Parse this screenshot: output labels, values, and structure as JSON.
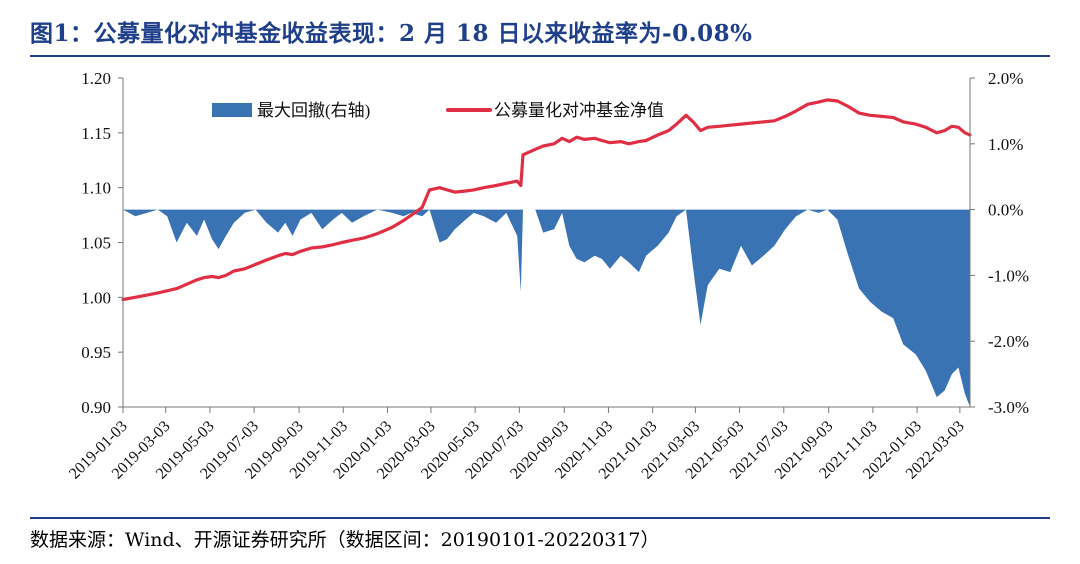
{
  "figure": {
    "title": "图1：公募量化对冲基金收益表现：2 月 18 日以来收益率为-0.08%",
    "source": "数据来源：Wind、开源证券研究所（数据区间：20190101-20220317）"
  },
  "chart_data": {
    "type": "area",
    "title": "",
    "xlabel": "",
    "ylabel_left": "",
    "ylabel_right": "",
    "xlim": [
      "2019-01-03",
      "2022-03-17"
    ],
    "ylim_left": [
      0.9,
      1.2
    ],
    "ylim_right": [
      -3.0,
      2.0
    ],
    "yticks_left": [
      "0.90",
      "0.95",
      "1.00",
      "1.05",
      "1.10",
      "1.15",
      "1.20"
    ],
    "yticks_right": [
      "-3.0%",
      "-2.0%",
      "-1.0%",
      "0.0%",
      "1.0%",
      "2.0%"
    ],
    "xticks": [
      "2019-01-03",
      "2019-03-03",
      "2019-05-03",
      "2019-07-03",
      "2019-09-03",
      "2019-11-03",
      "2020-01-03",
      "2020-03-03",
      "2020-05-03",
      "2020-07-03",
      "2020-09-03",
      "2020-11-03",
      "2021-01-03",
      "2021-03-03",
      "2021-05-03",
      "2021-07-03",
      "2021-09-03",
      "2021-11-03",
      "2022-01-03",
      "2022-03-03"
    ],
    "legend_position": "top-left inside",
    "grid": false,
    "series": [
      {
        "name": "最大回撤(右轴)",
        "kind": "area",
        "axis": "right",
        "color": "#3a73b4",
        "unit": "%",
        "points": [
          [
            "2019-01-03",
            0.0
          ],
          [
            "2019-01-20",
            -0.1
          ],
          [
            "2019-02-05",
            -0.05
          ],
          [
            "2019-02-20",
            0.0
          ],
          [
            "2019-03-05",
            -0.1
          ],
          [
            "2019-03-18",
            -0.5
          ],
          [
            "2019-04-01",
            -0.2
          ],
          [
            "2019-04-15",
            -0.4
          ],
          [
            "2019-04-25",
            -0.15
          ],
          [
            "2019-05-06",
            -0.45
          ],
          [
            "2019-05-15",
            -0.6
          ],
          [
            "2019-05-25",
            -0.4
          ],
          [
            "2019-06-05",
            -0.2
          ],
          [
            "2019-06-20",
            -0.05
          ],
          [
            "2019-07-05",
            0.0
          ],
          [
            "2019-07-20",
            -0.2
          ],
          [
            "2019-08-05",
            -0.35
          ],
          [
            "2019-08-15",
            -0.2
          ],
          [
            "2019-08-25",
            -0.4
          ],
          [
            "2019-09-05",
            -0.15
          ],
          [
            "2019-09-20",
            -0.05
          ],
          [
            "2019-10-05",
            -0.3
          ],
          [
            "2019-10-20",
            -0.15
          ],
          [
            "2019-11-01",
            -0.05
          ],
          [
            "2019-11-15",
            -0.2
          ],
          [
            "2019-12-01",
            -0.1
          ],
          [
            "2019-12-20",
            0.0
          ],
          [
            "2020-01-10",
            -0.05
          ],
          [
            "2020-01-25",
            -0.1
          ],
          [
            "2020-02-05",
            -0.05
          ],
          [
            "2020-02-20",
            -0.1
          ],
          [
            "2020-03-01",
            0.0
          ],
          [
            "2020-03-15",
            -0.5
          ],
          [
            "2020-03-25",
            -0.45
          ],
          [
            "2020-04-05",
            -0.3
          ],
          [
            "2020-04-20",
            -0.15
          ],
          [
            "2020-05-01",
            -0.05
          ],
          [
            "2020-05-15",
            -0.1
          ],
          [
            "2020-06-01",
            -0.2
          ],
          [
            "2020-06-15",
            -0.05
          ],
          [
            "2020-06-30",
            -0.4
          ],
          [
            "2020-07-05",
            -1.25
          ],
          [
            "2020-07-08",
            0.0
          ],
          [
            "2020-07-25",
            0.0
          ],
          [
            "2020-08-05",
            -0.35
          ],
          [
            "2020-08-20",
            -0.3
          ],
          [
            "2020-08-31",
            -0.05
          ],
          [
            "2020-09-10",
            -0.55
          ],
          [
            "2020-09-20",
            -0.75
          ],
          [
            "2020-10-01",
            -0.8
          ],
          [
            "2020-10-15",
            -0.7
          ],
          [
            "2020-10-25",
            -0.75
          ],
          [
            "2020-11-05",
            -0.9
          ],
          [
            "2020-11-20",
            -0.7
          ],
          [
            "2020-12-01",
            -0.8
          ],
          [
            "2020-12-15",
            -0.95
          ],
          [
            "2020-12-25",
            -0.7
          ],
          [
            "2021-01-10",
            -0.55
          ],
          [
            "2021-01-25",
            -0.35
          ],
          [
            "2021-02-05",
            -0.1
          ],
          [
            "2021-02-18",
            0.0
          ],
          [
            "2021-02-28",
            -0.9
          ],
          [
            "2021-03-10",
            -1.75
          ],
          [
            "2021-03-20",
            -1.15
          ],
          [
            "2021-04-05",
            -0.9
          ],
          [
            "2021-04-20",
            -0.95
          ],
          [
            "2021-05-05",
            -0.55
          ],
          [
            "2021-05-20",
            -0.85
          ],
          [
            "2021-06-05",
            -0.7
          ],
          [
            "2021-06-20",
            -0.55
          ],
          [
            "2021-07-05",
            -0.3
          ],
          [
            "2021-07-20",
            -0.1
          ],
          [
            "2021-08-05",
            0.0
          ],
          [
            "2021-08-20",
            -0.05
          ],
          [
            "2021-09-01",
            0.0
          ],
          [
            "2021-09-15",
            -0.15
          ],
          [
            "2021-09-30",
            -0.7
          ],
          [
            "2021-10-15",
            -1.2
          ],
          [
            "2021-10-30",
            -1.4
          ],
          [
            "2021-11-15",
            -1.55
          ],
          [
            "2021-12-01",
            -1.65
          ],
          [
            "2021-12-15",
            -2.05
          ],
          [
            "2022-01-01",
            -2.2
          ],
          [
            "2022-01-15",
            -2.45
          ],
          [
            "2022-01-30",
            -2.85
          ],
          [
            "2022-02-10",
            -2.75
          ],
          [
            "2022-02-20",
            -2.5
          ],
          [
            "2022-03-01",
            -2.4
          ],
          [
            "2022-03-10",
            -2.8
          ],
          [
            "2022-03-17",
            -3.0
          ]
        ]
      },
      {
        "name": "公募量化对冲基金净值",
        "kind": "line",
        "axis": "left",
        "color": "#e02f45",
        "points": [
          [
            "2019-01-03",
            0.998
          ],
          [
            "2019-01-20",
            1.0
          ],
          [
            "2019-02-05",
            1.002
          ],
          [
            "2019-02-20",
            1.004
          ],
          [
            "2019-03-05",
            1.006
          ],
          [
            "2019-03-18",
            1.008
          ],
          [
            "2019-04-01",
            1.012
          ],
          [
            "2019-04-15",
            1.016
          ],
          [
            "2019-04-25",
            1.018
          ],
          [
            "2019-05-06",
            1.019
          ],
          [
            "2019-05-15",
            1.018
          ],
          [
            "2019-05-25",
            1.02
          ],
          [
            "2019-06-05",
            1.024
          ],
          [
            "2019-06-20",
            1.026
          ],
          [
            "2019-07-05",
            1.03
          ],
          [
            "2019-07-20",
            1.034
          ],
          [
            "2019-08-05",
            1.038
          ],
          [
            "2019-08-15",
            1.04
          ],
          [
            "2019-08-25",
            1.039
          ],
          [
            "2019-09-05",
            1.042
          ],
          [
            "2019-09-20",
            1.045
          ],
          [
            "2019-10-05",
            1.046
          ],
          [
            "2019-10-20",
            1.048
          ],
          [
            "2019-11-01",
            1.05
          ],
          [
            "2019-11-15",
            1.052
          ],
          [
            "2019-12-01",
            1.054
          ],
          [
            "2019-12-20",
            1.058
          ],
          [
            "2020-01-10",
            1.064
          ],
          [
            "2020-01-25",
            1.07
          ],
          [
            "2020-02-05",
            1.075
          ],
          [
            "2020-02-20",
            1.082
          ],
          [
            "2020-03-01",
            1.098
          ],
          [
            "2020-03-15",
            1.1
          ],
          [
            "2020-03-25",
            1.098
          ],
          [
            "2020-04-05",
            1.096
          ],
          [
            "2020-04-20",
            1.097
          ],
          [
            "2020-05-01",
            1.098
          ],
          [
            "2020-05-15",
            1.1
          ],
          [
            "2020-06-01",
            1.102
          ],
          [
            "2020-06-15",
            1.104
          ],
          [
            "2020-06-30",
            1.106
          ],
          [
            "2020-07-05",
            1.102
          ],
          [
            "2020-07-08",
            1.13
          ],
          [
            "2020-07-25",
            1.135
          ],
          [
            "2020-08-05",
            1.138
          ],
          [
            "2020-08-20",
            1.14
          ],
          [
            "2020-08-31",
            1.145
          ],
          [
            "2020-09-10",
            1.142
          ],
          [
            "2020-09-20",
            1.146
          ],
          [
            "2020-10-01",
            1.144
          ],
          [
            "2020-10-15",
            1.145
          ],
          [
            "2020-10-25",
            1.143
          ],
          [
            "2020-11-05",
            1.141
          ],
          [
            "2020-11-20",
            1.142
          ],
          [
            "2020-12-01",
            1.14
          ],
          [
            "2020-12-15",
            1.142
          ],
          [
            "2020-12-25",
            1.143
          ],
          [
            "2021-01-10",
            1.148
          ],
          [
            "2021-01-25",
            1.152
          ],
          [
            "2021-02-05",
            1.158
          ],
          [
            "2021-02-18",
            1.166
          ],
          [
            "2021-02-28",
            1.16
          ],
          [
            "2021-03-10",
            1.152
          ],
          [
            "2021-03-20",
            1.155
          ],
          [
            "2021-04-05",
            1.156
          ],
          [
            "2021-04-20",
            1.157
          ],
          [
            "2021-05-05",
            1.158
          ],
          [
            "2021-05-20",
            1.159
          ],
          [
            "2021-06-05",
            1.16
          ],
          [
            "2021-06-20",
            1.161
          ],
          [
            "2021-07-05",
            1.165
          ],
          [
            "2021-07-20",
            1.17
          ],
          [
            "2021-08-05",
            1.176
          ],
          [
            "2021-08-20",
            1.178
          ],
          [
            "2021-09-01",
            1.18
          ],
          [
            "2021-09-15",
            1.179
          ],
          [
            "2021-09-30",
            1.174
          ],
          [
            "2021-10-15",
            1.168
          ],
          [
            "2021-10-30",
            1.166
          ],
          [
            "2021-11-15",
            1.165
          ],
          [
            "2021-12-01",
            1.164
          ],
          [
            "2021-12-15",
            1.16
          ],
          [
            "2022-01-01",
            1.158
          ],
          [
            "2022-01-15",
            1.155
          ],
          [
            "2022-01-30",
            1.15
          ],
          [
            "2022-02-10",
            1.152
          ],
          [
            "2022-02-20",
            1.156
          ],
          [
            "2022-03-01",
            1.155
          ],
          [
            "2022-03-10",
            1.15
          ],
          [
            "2022-03-17",
            1.148
          ]
        ]
      }
    ]
  }
}
